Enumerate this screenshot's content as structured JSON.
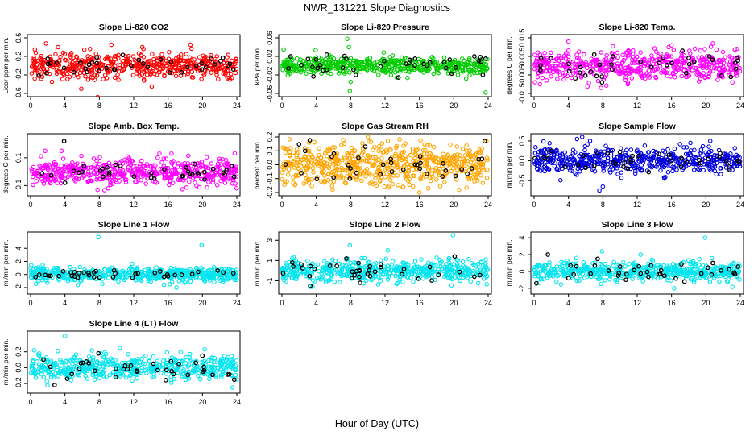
{
  "figure": {
    "title": "NWR_131221  Slope Diagnostics",
    "xlabel": "Hour of Day (UTC)"
  },
  "chart_data": [
    {
      "type": "scatter",
      "title": "Slope Li-820 CO2",
      "ylabel": "Licor ppm per min.",
      "xlim": [
        0,
        24
      ],
      "ylim": [
        -0.6,
        0.6
      ],
      "xticks": [
        "0",
        "4",
        "8",
        "12",
        "16",
        "20",
        "24"
      ],
      "yticks": [
        "-0.6",
        "-0.2",
        "0.2",
        "0.6"
      ],
      "ytick_values": [
        -0.6,
        -0.2,
        0.2,
        0.6
      ],
      "series": [
        {
          "color": "#ff0000",
          "spread": 0.14,
          "count": 520,
          "x": [
            0.5,
            1.8,
            3.2,
            5.9,
            7.8,
            9.4,
            13.0,
            14.1,
            18.6,
            23.2
          ],
          "y": [
            0.35,
            0.48,
            0.4,
            -0.5,
            -0.68,
            0.45,
            0.4,
            -0.45,
            0.45,
            -0.3
          ]
        },
        {
          "color": "#000000",
          "spread": 0.1,
          "count": 30,
          "x": [
            2.0,
            3.9,
            6.8,
            7.7,
            9.8,
            12.6,
            16.2,
            19.9,
            22.1,
            23.6
          ],
          "y": [
            0.15,
            -0.05,
            0.02,
            0.18,
            -0.08,
            0.12,
            -0.15,
            0.05,
            0.1,
            -0.08
          ]
        }
      ]
    },
    {
      "type": "scatter",
      "title": "Slope Li-820 Pressure",
      "ylabel": "kPa per min.",
      "xlim": [
        0,
        24
      ],
      "ylim": [
        -0.06,
        0.06
      ],
      "xticks": [
        "0",
        "4",
        "8",
        "12",
        "16",
        "20",
        "24"
      ],
      "yticks": [
        "-0.06",
        "-0.02",
        "0.02",
        "0.06"
      ],
      "ytick_values": [
        -0.06,
        -0.02,
        0.02,
        0.06
      ],
      "series": [
        {
          "color": "#00cc00",
          "spread": 0.009,
          "count": 520,
          "x": [
            0.2,
            7.6,
            7.9,
            8.0,
            7.8,
            23.7
          ],
          "y": [
            0.035,
            0.058,
            -0.055,
            -0.035,
            0.04,
            -0.058
          ]
        },
        {
          "color": "#000000",
          "spread": 0.01,
          "count": 30,
          "x": [
            1.0,
            4.8,
            7.5,
            8.6,
            11.9,
            15.5,
            19.1,
            22.4,
            23.7
          ],
          "y": [
            0.02,
            -0.01,
            0.015,
            -0.02,
            0.01,
            0.015,
            -0.005,
            0.02,
            0.015
          ]
        }
      ]
    },
    {
      "type": "scatter",
      "title": "Slope Li-820 Temp.",
      "ylabel": "degrees C per min.",
      "xlim": [
        0,
        24
      ],
      "ylim": [
        -0.015,
        0.015
      ],
      "xticks": [
        "0",
        "4",
        "8",
        "12",
        "16",
        "20",
        "24"
      ],
      "yticks": [
        "-0.015",
        "-0.005",
        "0.005",
        "0.015"
      ],
      "ytick_values": [
        -0.015,
        -0.005,
        0.005,
        0.015
      ],
      "series": [
        {
          "color": "#ff00ff",
          "spread": 0.0042,
          "count": 520,
          "x": [
            4.0,
            7.8,
            10.9,
            16.0,
            20.8,
            23.6
          ],
          "y": [
            0.013,
            -0.012,
            -0.01,
            0.011,
            0.012,
            0.009
          ]
        },
        {
          "color": "#000000",
          "spread": 0.003,
          "count": 30,
          "x": [
            2.0,
            4.1,
            7.0,
            7.9,
            12.4,
            17.7,
            20.4,
            22.9
          ],
          "y": [
            0.004,
            -0.003,
            0.006,
            -0.009,
            0.002,
            -0.004,
            0.005,
            -0.006
          ]
        }
      ]
    },
    {
      "type": "scatter",
      "title": "Slope Amb. Box Temp.",
      "ylabel": "degrees C per min.",
      "xlim": [
        0,
        24
      ],
      "ylim": [
        -0.15,
        0.25
      ],
      "xticks": [
        "0",
        "4",
        "8",
        "12",
        "16",
        "20",
        "24"
      ],
      "yticks": [
        "-0.1",
        "0.1"
      ],
      "ytick_values": [
        -0.1,
        0.1
      ],
      "series": [
        {
          "color": "#ff00ff",
          "spread": 0.045,
          "count": 520,
          "x": [
            1.7,
            3.6,
            7.8,
            15.0,
            16.4,
            19.3
          ],
          "y": [
            0.15,
            0.15,
            -0.13,
            0.13,
            0.13,
            -0.1
          ]
        },
        {
          "color": "#000000",
          "spread": 0.035,
          "count": 30,
          "x": [
            3.9,
            4.0,
            6.0,
            9.9,
            14.4,
            18.1,
            22.6,
            23.4
          ],
          "y": [
            0.22,
            -0.08,
            0.0,
            0.05,
            -0.05,
            0.03,
            -0.02,
            0.04
          ]
        }
      ]
    },
    {
      "type": "scatter",
      "title": "Slope Gas Stream RH",
      "ylabel": "percent per min.",
      "xlim": [
        0,
        24
      ],
      "ylim": [
        -0.2,
        0.2
      ],
      "xticks": [
        "0",
        "4",
        "8",
        "12",
        "16",
        "20",
        "24"
      ],
      "yticks": [
        "-0.2",
        "-0.1",
        "0.0",
        "0.1",
        "0.2"
      ],
      "ytick_values": [
        -0.2,
        -0.1,
        0.0,
        0.1,
        0.2
      ],
      "series": [
        {
          "color": "#ffa500",
          "spread": 0.075,
          "count": 620,
          "x": [
            10.0,
            11.0,
            16.0,
            23.8
          ],
          "y": [
            0.2,
            -0.15,
            -0.2,
            0.17
          ]
        },
        {
          "color": "#000000",
          "spread": 0.06,
          "count": 30,
          "x": [
            2.7,
            7.9,
            9.7,
            12.8,
            16.1,
            20.2,
            23.6
          ],
          "y": [
            0.1,
            -0.1,
            0.13,
            -0.05,
            0.06,
            -0.08,
            0.17
          ]
        }
      ]
    },
    {
      "type": "scatter",
      "title": "Slope Sample Flow",
      "ylabel": "ml/min per min.",
      "xlim": [
        0,
        24
      ],
      "ylim": [
        -0.8,
        0.6
      ],
      "xticks": [
        "0",
        "4",
        "8",
        "12",
        "16",
        "20",
        "24"
      ],
      "yticks": [
        "-0.5",
        "0.0",
        "0.5"
      ],
      "ytick_values": [
        -0.5,
        0.0,
        0.5
      ],
      "series": [
        {
          "color": "#0000dd",
          "spread": 0.16,
          "count": 520,
          "x": [
            5.0,
            5.6,
            7.6,
            8.0,
            18.2,
            20.5
          ],
          "y": [
            0.55,
            0.6,
            -0.75,
            -0.65,
            0.45,
            0.5
          ]
        },
        {
          "color": "#000000",
          "spread": 0.13,
          "count": 30,
          "x": [
            2.0,
            5.1,
            7.4,
            10.9,
            15.7,
            20.3,
            22.7,
            23.7
          ],
          "y": [
            0.25,
            -0.1,
            0.2,
            -0.2,
            0.15,
            0.05,
            -0.15,
            0.0
          ]
        }
      ]
    },
    {
      "type": "scatter",
      "title": "Slope Line 1 Flow",
      "ylabel": "ml/min per min.",
      "xlim": [
        0,
        24
      ],
      "ylim": [
        -2.5,
        6
      ],
      "xticks": [
        "0",
        "4",
        "8",
        "12",
        "16",
        "20",
        "24"
      ],
      "yticks": [
        "-2",
        "0",
        "2",
        "4"
      ],
      "ytick_values": [
        -2,
        0,
        2,
        4
      ],
      "series": [
        {
          "color": "#00e5ee",
          "spread": 0.55,
          "count": 520,
          "x": [
            7.9,
            19.9,
            5.5,
            16.2
          ],
          "y": [
            5.7,
            4.5,
            -1.6,
            -1.5
          ]
        },
        {
          "color": "#000000",
          "spread": 0.35,
          "count": 30,
          "x": [
            2.1,
            4.7,
            7.6,
            9.6,
            12.2,
            16.8,
            19.5,
            23.6
          ],
          "y": [
            -0.2,
            0.3,
            0.5,
            -0.4,
            0.1,
            -0.1,
            0.4,
            0.2
          ]
        }
      ]
    },
    {
      "type": "scatter",
      "title": "Slope Line 2 Flow",
      "ylabel": "ml/min per min.",
      "xlim": [
        0,
        24
      ],
      "ylim": [
        -2,
        3.5
      ],
      "xticks": [
        "0",
        "4",
        "8",
        "12",
        "16",
        "20",
        "24"
      ],
      "yticks": [
        "-1",
        "1",
        "3"
      ],
      "ytick_values": [
        -1,
        1,
        3
      ],
      "series": [
        {
          "color": "#00e5ee",
          "spread": 0.55,
          "count": 520,
          "x": [
            19.9,
            7.9,
            12.3,
            3.3
          ],
          "y": [
            3.5,
            2.5,
            2.0,
            -1.6
          ]
        },
        {
          "color": "#000000",
          "spread": 0.5,
          "count": 30,
          "x": [
            1.2,
            3.3,
            7.5,
            9.1,
            11.5,
            15.9,
            20.1,
            22.4
          ],
          "y": [
            0.8,
            -1.5,
            1.2,
            -1.2,
            0.6,
            -0.8,
            1.4,
            -0.6
          ]
        }
      ]
    },
    {
      "type": "scatter",
      "title": "Slope Line 3 Flow",
      "ylabel": "ml/min per min.",
      "xlim": [
        0,
        24
      ],
      "ylim": [
        -2.3,
        4.3
      ],
      "xticks": [
        "0",
        "4",
        "8",
        "12",
        "16",
        "20",
        "24"
      ],
      "yticks": [
        "-2",
        "0",
        "2",
        "4"
      ],
      "ytick_values": [
        -2,
        0,
        2,
        4
      ],
      "series": [
        {
          "color": "#00e5ee",
          "spread": 0.55,
          "count": 520,
          "x": [
            19.9,
            7.9,
            16.3,
            12.4
          ],
          "y": [
            4.0,
            2.4,
            -2.0,
            2.0
          ]
        },
        {
          "color": "#000000",
          "spread": 0.5,
          "count": 30,
          "x": [
            1.6,
            4.0,
            7.4,
            9.8,
            13.6,
            17.5,
            20.8,
            23.4
          ],
          "y": [
            2.0,
            -0.8,
            1.5,
            -0.5,
            0.7,
            -1.2,
            1.0,
            -0.3
          ]
        }
      ]
    },
    {
      "type": "scatter",
      "title": "Slope Line 4 (LT) Flow",
      "ylabel": "ml/min per min.",
      "xlim": [
        0,
        24
      ],
      "ylim": [
        -0.28,
        0.42
      ],
      "xticks": [
        "0",
        "4",
        "8",
        "12",
        "16",
        "20",
        "24"
      ],
      "yticks": [
        "-0.2",
        "0.0",
        "0.2"
      ],
      "ytick_values": [
        -0.2,
        0.0,
        0.2
      ],
      "series": [
        {
          "color": "#00e5ee",
          "spread": 0.075,
          "count": 520,
          "x": [
            4.0,
            0.4,
            23.5,
            10.4
          ],
          "y": [
            0.4,
            0.22,
            -0.25,
            0.25
          ]
        },
        {
          "color": "#000000",
          "spread": 0.07,
          "count": 30,
          "x": [
            1.5,
            4.8,
            7.9,
            9.9,
            14.3,
            18.3,
            20.0,
            23.7
          ],
          "y": [
            0.1,
            -0.08,
            0.18,
            -0.12,
            0.05,
            -0.09,
            0.15,
            -0.15
          ]
        }
      ]
    }
  ]
}
